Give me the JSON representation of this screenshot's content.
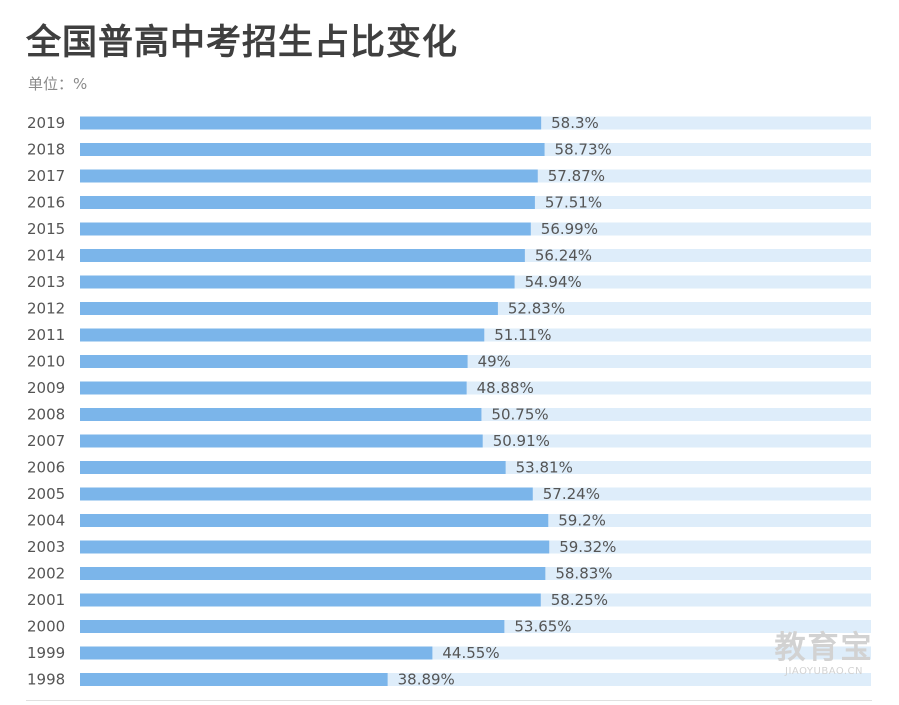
{
  "chart_data": {
    "type": "bar",
    "orientation": "horizontal",
    "title": "全国普高中考招生占比变化",
    "unit_label": "单位：%",
    "categories": [
      "2019",
      "2018",
      "2017",
      "2016",
      "2015",
      "2014",
      "2013",
      "2012",
      "2011",
      "2010",
      "2009",
      "2008",
      "2007",
      "2006",
      "2005",
      "2004",
      "2003",
      "2002",
      "2001",
      "2000",
      "1999",
      "1998"
    ],
    "values": [
      58.3,
      58.73,
      57.87,
      57.51,
      56.99,
      56.24,
      54.94,
      52.83,
      51.11,
      49,
      48.88,
      50.75,
      50.91,
      53.81,
      57.24,
      59.2,
      59.32,
      58.83,
      58.25,
      53.65,
      44.55,
      38.89
    ],
    "value_labels": [
      "58.3%",
      "58.73%",
      "57.87%",
      "57.51%",
      "56.99%",
      "56.24%",
      "54.94%",
      "52.83%",
      "51.11%",
      "49%",
      "48.88%",
      "50.75%",
      "50.91%",
      "53.81%",
      "57.24%",
      "59.2%",
      "59.32%",
      "58.83%",
      "58.25%",
      "53.65%",
      "44.55%",
      "38.89%"
    ],
    "xlim": [
      0,
      100
    ],
    "grid": false,
    "legend": "none",
    "colors": {
      "bar": "#7bb5ea",
      "track": "#deedfa",
      "label": "#555555",
      "value_text": "#555555"
    }
  },
  "watermark": {
    "cn": "教育宝",
    "en": "JIAOYUBAO.CN"
  }
}
